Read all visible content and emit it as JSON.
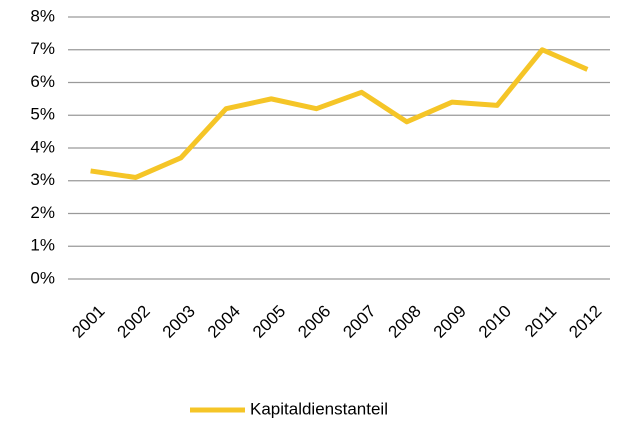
{
  "chart_data": {
    "type": "line",
    "categories": [
      "2001",
      "2002",
      "2003",
      "2004",
      "2005",
      "2006",
      "2007",
      "2008",
      "2009",
      "2010",
      "2011",
      "2012"
    ],
    "series": [
      {
        "name": "Kapitaldienstanteil",
        "color": "#f5c527",
        "values": [
          3.3,
          3.1,
          3.7,
          5.2,
          5.5,
          5.2,
          5.7,
          4.8,
          5.4,
          5.3,
          7.0,
          6.4
        ]
      }
    ],
    "ylim": [
      0,
      8
    ],
    "yticks": [
      {
        "value": 0,
        "label": "0%"
      },
      {
        "value": 1,
        "label": "1%"
      },
      {
        "value": 2,
        "label": "2%"
      },
      {
        "value": 3,
        "label": "3%"
      },
      {
        "value": 4,
        "label": "4%"
      },
      {
        "value": 5,
        "label": "5%"
      },
      {
        "value": 6,
        "label": "6%"
      },
      {
        "value": 7,
        "label": "7%"
      },
      {
        "value": 8,
        "label": "8%"
      }
    ],
    "grid": true,
    "legend": "bottom"
  }
}
